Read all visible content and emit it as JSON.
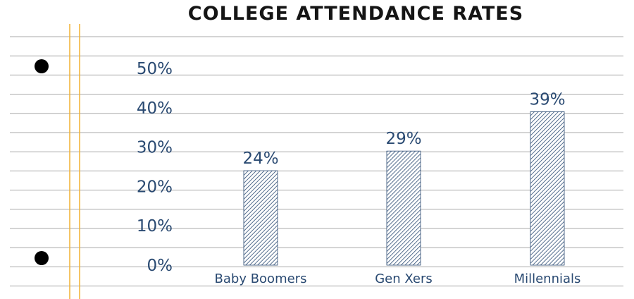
{
  "title": "COLLEGE ATTENDANCE RATES",
  "chart_data": {
    "type": "bar",
    "title": "COLLEGE ATTENDANCE RATES",
    "categories": [
      "Baby Boomers",
      "Gen Xers",
      "Millennials"
    ],
    "values": [
      24,
      29,
      39
    ],
    "value_labels": [
      "24%",
      "29%",
      "39%"
    ],
    "yticks": [
      0,
      10,
      20,
      30,
      40,
      50
    ],
    "ytick_labels": [
      "0%",
      "10%",
      "20%",
      "30%",
      "40%",
      "50%"
    ],
    "ylim": [
      0,
      50
    ],
    "xlabel": "",
    "ylabel": "",
    "grid": true,
    "legend": "none"
  },
  "colors": {
    "bar_fill": "#ffffff",
    "bar_hatch": "#2a4a72",
    "text": "#2a4a72",
    "ruled_line": "#a9a9a9",
    "margin_line": "#f2b233",
    "punch_hole": "#000000",
    "title": "#151515"
  }
}
